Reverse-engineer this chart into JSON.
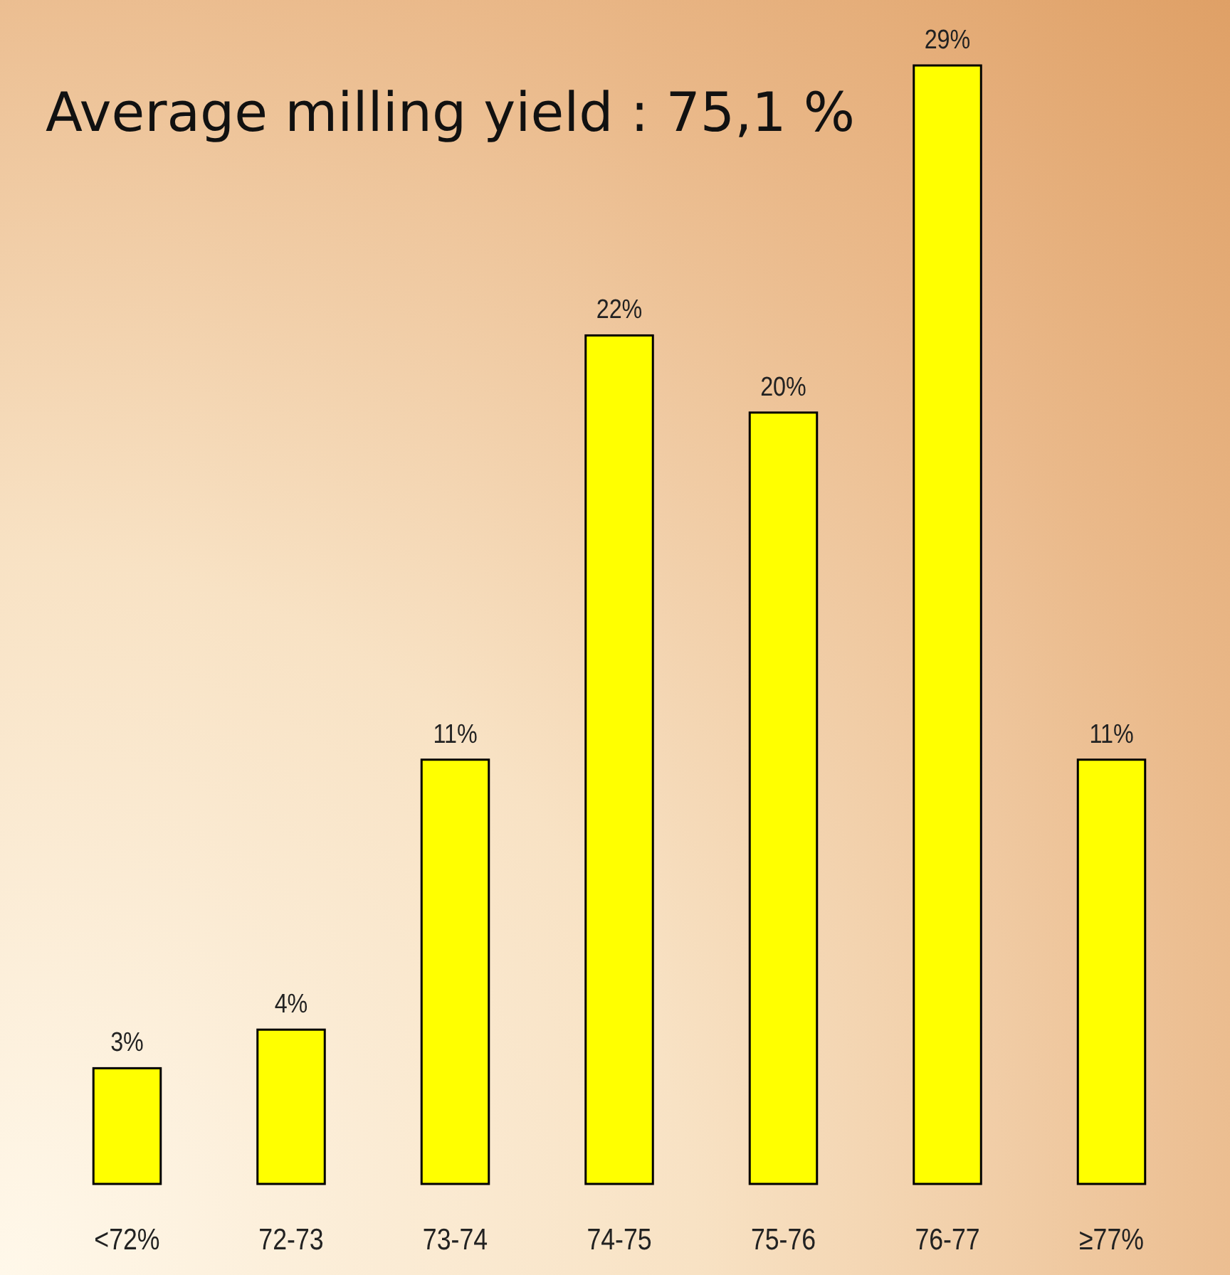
{
  "chart_data": {
    "type": "bar",
    "title": "Average milling yield : 75,1 %",
    "categories": [
      "<72%",
      "72-73",
      "73-74",
      "74-75",
      "75-76",
      "76-77",
      "≥77%"
    ],
    "values": [
      3,
      4,
      11,
      22,
      20,
      29,
      11
    ],
    "value_labels": [
      "3%",
      "4%",
      "11%",
      "22%",
      "20%",
      "29%",
      "11%"
    ],
    "color": "#ffff00"
  }
}
